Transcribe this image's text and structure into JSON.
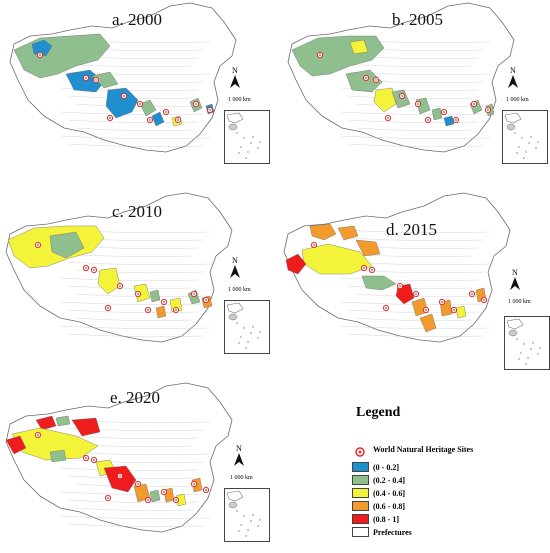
{
  "panels": [
    {
      "id": "a",
      "title": "a. 2000",
      "scale": "1 000 km",
      "north": "N"
    },
    {
      "id": "b",
      "title": "b. 2005",
      "scale": "1 000 km",
      "north": "N"
    },
    {
      "id": "c",
      "title": "c. 2010",
      "scale": "1 000 km",
      "north": "N"
    },
    {
      "id": "d",
      "title": "d. 2015",
      "scale": "1 000 km",
      "north": "N"
    },
    {
      "id": "e",
      "title": "e. 2020",
      "scale": "1 000 km",
      "north": "N"
    }
  ],
  "legend": {
    "title": "Legend",
    "site_label": "World Natural Heritage Sites",
    "classes": [
      {
        "label": "(0 - 0.2]",
        "color": "#1f8fd0"
      },
      {
        "label": "(0.2 - 0.4]",
        "color": "#8fbf8f"
      },
      {
        "label": "(0.4 - 0.6]",
        "color": "#f3f33a"
      },
      {
        "label": "(0.6 - 0.8]",
        "color": "#f39a2c"
      },
      {
        "label": "(0.8 - 1]",
        "color": "#ee1c1c"
      }
    ],
    "prefecture_label": "Prefectures",
    "prefecture_color": "#ffffff"
  },
  "colors": {
    "outline": "#6b6b6b",
    "site_ring": "#e03030"
  }
}
